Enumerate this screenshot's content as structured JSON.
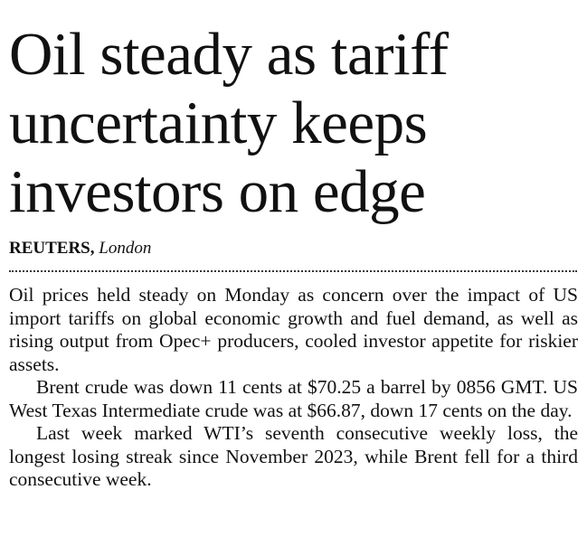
{
  "headline_lines": [
    "Oil steady as tariff",
    "uncertainty keeps",
    "investors on edge"
  ],
  "byline": {
    "agency": "REUTERS,",
    "location": "London"
  },
  "paragraphs": [
    "Oil prices held steady on Monday as concern over the impact of US import tariffs on global economic growth and fuel demand, as well as rising output from Opec+ producers, cooled investor appetite for riskier assets.",
    "Brent crude was down 11 cents at $70.25 a barrel by 0856 GMT. US West Texas Intermediate crude was at $66.87, down 17 cents on the day.",
    "Last week marked WTI’s seventh consecutive weekly loss, the longest losing streak since November 2023, while Brent fell for a third consecutive week."
  ]
}
